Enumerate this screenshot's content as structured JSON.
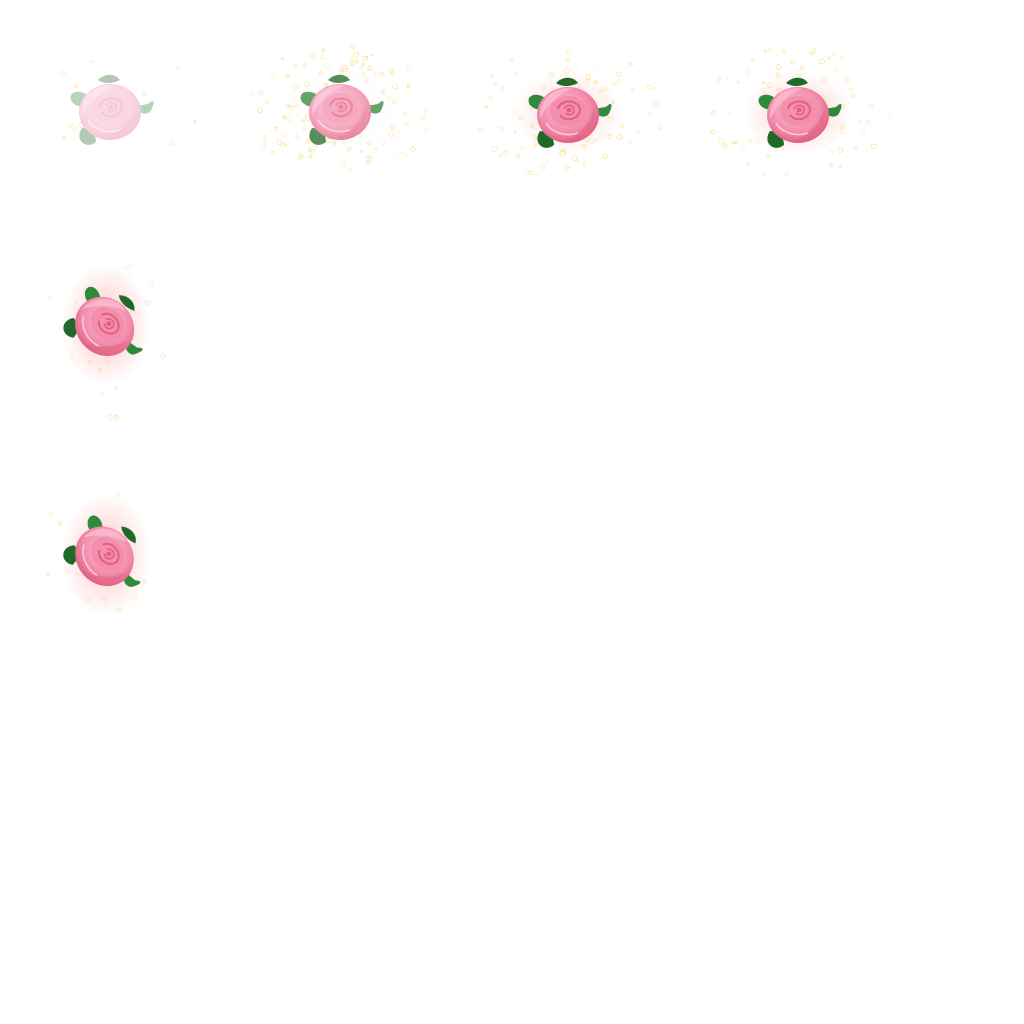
{
  "sheet": {
    "background": "#ffffff",
    "frames": [
      {
        "name": "frame-1",
        "opacity": 0.35,
        "sparkle": 0.08,
        "glow": 0.0,
        "rotation": 0
      },
      {
        "name": "frame-2",
        "opacity": 0.75,
        "sparkle": 0.8,
        "glow": 0.1,
        "rotation": 0
      },
      {
        "name": "frame-3",
        "opacity": 1.0,
        "sparkle": 0.6,
        "glow": 0.55,
        "rotation": 0
      },
      {
        "name": "frame-4",
        "opacity": 1.0,
        "sparkle": 0.5,
        "glow": 0.7,
        "rotation": 0
      },
      {
        "name": "frame-5",
        "opacity": 1.0,
        "sparkle": 0.15,
        "glow": 0.85,
        "rotation": 45
      },
      {
        "name": "frame-6",
        "opacity": 1.0,
        "sparkle": 0.08,
        "glow": 0.85,
        "rotation": 50
      }
    ],
    "colors": {
      "petal_light": "#fbc2d3",
      "petal_mid": "#f28aab",
      "petal_dark": "#e0607f",
      "leaf": "#2f8a3c",
      "leaf_dark": "#1f6a2a",
      "glow": "#ffb3b3",
      "sparkle": "#f6e08a"
    }
  }
}
